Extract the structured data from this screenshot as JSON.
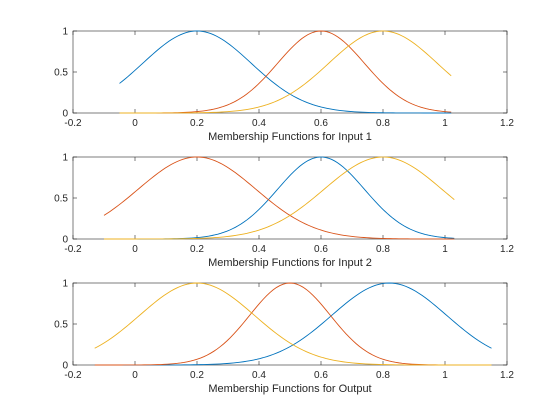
{
  "figure": {
    "background": "#ffffff",
    "series_colors": [
      "#0072BD",
      "#D95319",
      "#EDB120"
    ]
  },
  "chart_data": [
    {
      "type": "line",
      "xlabel": "Membership Functions for Input 1",
      "xlim": [
        -0.2,
        1.2
      ],
      "ylim": [
        0,
        1
      ],
      "xticks": [
        "-0.2",
        "0",
        "0.2",
        "0.4",
        "0.6",
        "0.8",
        "1",
        "1.2"
      ],
      "yticks": [
        "0",
        "0.5",
        "1"
      ],
      "grid": false,
      "series": [
        {
          "shape": "gaussian",
          "center": 0.2,
          "sigma": 0.175,
          "x_range": [
            -0.05,
            1.02
          ]
        },
        {
          "shape": "gaussian",
          "center": 0.6,
          "sigma": 0.14,
          "x_range": [
            -0.05,
            1.02
          ]
        },
        {
          "shape": "gaussian",
          "center": 0.8,
          "sigma": 0.175,
          "x_range": [
            -0.05,
            1.02
          ]
        }
      ]
    },
    {
      "type": "line",
      "xlabel": "Membership Functions for Input 2",
      "xlim": [
        -0.2,
        1.2
      ],
      "ylim": [
        0,
        1
      ],
      "xticks": [
        "-0.2",
        "0",
        "0.2",
        "0.4",
        "0.6",
        "0.8",
        "1",
        "1.2"
      ],
      "yticks": [
        "0",
        "0.5",
        "1"
      ],
      "grid": false,
      "series": [
        {
          "shape": "gaussian",
          "center": 0.6,
          "sigma": 0.14,
          "x_range": [
            -0.1,
            1.03
          ]
        },
        {
          "shape": "gaussian",
          "center": 0.2,
          "sigma": 0.19,
          "x_range": [
            -0.1,
            1.03
          ]
        },
        {
          "shape": "gaussian",
          "center": 0.8,
          "sigma": 0.19,
          "x_range": [
            -0.1,
            1.03
          ]
        }
      ]
    },
    {
      "type": "line",
      "xlabel": "Membership Functions for Output",
      "xlim": [
        -0.2,
        1.2
      ],
      "ylim": [
        0,
        1
      ],
      "xticks": [
        "-0.2",
        "0",
        "0.2",
        "0.4",
        "0.6",
        "0.8",
        "1",
        "1.2"
      ],
      "yticks": [
        "0",
        "0.5",
        "1"
      ],
      "grid": false,
      "series": [
        {
          "shape": "gaussian",
          "center": 0.82,
          "sigma": 0.185,
          "x_range": [
            -0.13,
            1.15
          ]
        },
        {
          "shape": "gaussian",
          "center": 0.5,
          "sigma": 0.13,
          "x_range": [
            -0.13,
            1.15
          ]
        },
        {
          "shape": "gaussian",
          "center": 0.2,
          "sigma": 0.185,
          "x_range": [
            -0.13,
            1.15
          ]
        }
      ]
    }
  ]
}
